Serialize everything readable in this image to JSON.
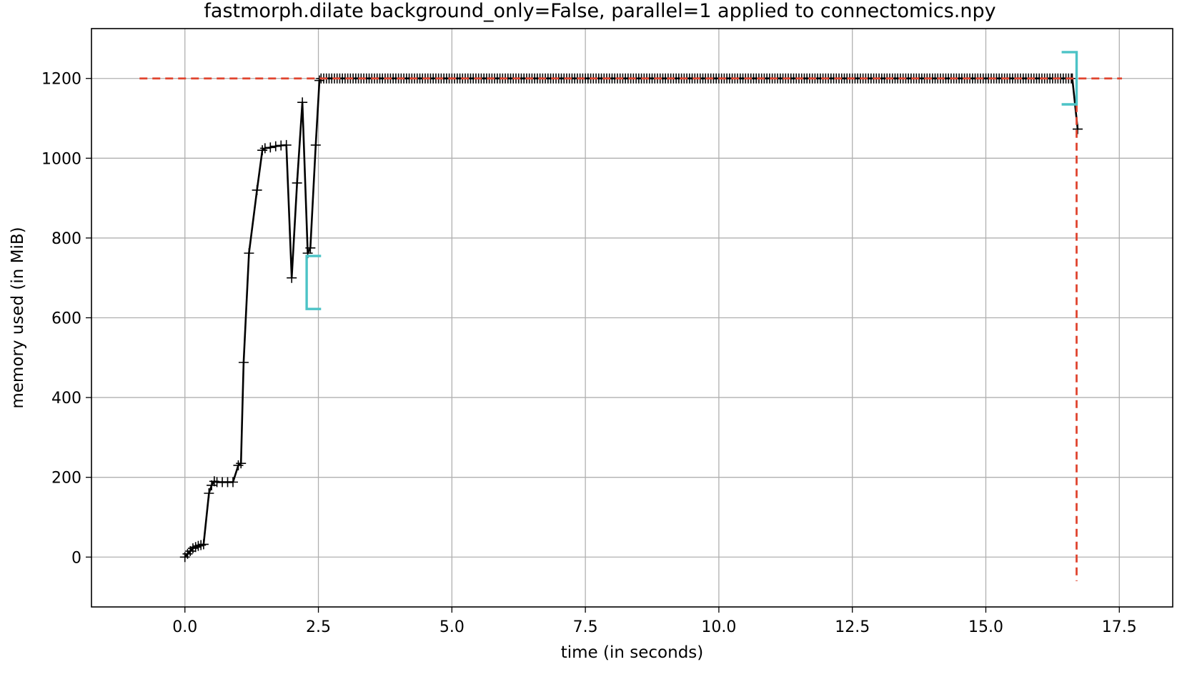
{
  "chart_data": {
    "type": "line",
    "title": "fastmorph.dilate background_only=False, parallel=1 applied to connectomics.npy",
    "xlabel": "time (in seconds)",
    "ylabel": "memory used (in MiB)",
    "xlim": [
      -1.75,
      18.5
    ],
    "ylim": [
      -125,
      1325
    ],
    "xticks": [
      0.0,
      2.5,
      5.0,
      7.5,
      10.0,
      12.5,
      15.0,
      17.5
    ],
    "xtick_labels": [
      "0.0",
      "2.5",
      "5.0",
      "7.5",
      "10.0",
      "12.5",
      "15.0",
      "17.5"
    ],
    "yticks": [
      0,
      200,
      400,
      600,
      800,
      1000,
      1200
    ],
    "ytick_labels": [
      "0",
      "200",
      "400",
      "600",
      "800",
      "1000",
      "1200"
    ],
    "grid": true,
    "legend": "none",
    "colors": {
      "series": "#000000",
      "max_marker": "#e0442f",
      "function_bracket": "#4cc3c6",
      "grid": "#b0b0b0"
    },
    "series": [
      {
        "x": [
          0.0,
          0.05,
          0.1,
          0.15,
          0.2,
          0.25,
          0.3,
          0.35,
          0.45,
          0.5,
          0.55,
          0.6,
          0.7,
          0.8,
          0.9,
          1.0,
          1.05,
          1.1,
          1.2,
          1.35,
          1.45,
          1.5,
          1.6,
          1.7,
          1.8,
          1.9,
          2.0,
          2.1,
          2.2,
          2.3,
          2.35,
          2.45,
          2.52
        ],
        "values": [
          0,
          8,
          15,
          22,
          25,
          28,
          30,
          32,
          160,
          180,
          190,
          188,
          188,
          188,
          188,
          230,
          235,
          488,
          762,
          920,
          1020,
          1025,
          1027,
          1030,
          1032,
          1033,
          700,
          938,
          1140,
          762,
          775,
          1033,
          1195
        ]
      }
    ],
    "plateau": {
      "x_start": 2.55,
      "x_end": 16.62,
      "step": 0.05,
      "value": 1200
    },
    "tail": {
      "x": [
        16.62,
        16.72
      ],
      "values": [
        1200,
        1073
      ]
    },
    "max_memory_line": {
      "value": 1200,
      "time": 16.7
    },
    "function_brackets": [
      {
        "x_start": 2.28,
        "x_end": 2.55,
        "y_low": 622,
        "y_high": 755
      },
      {
        "x_start": 16.7,
        "x_end": 16.42,
        "y_low": 1135,
        "y_high": 1266
      }
    ]
  }
}
